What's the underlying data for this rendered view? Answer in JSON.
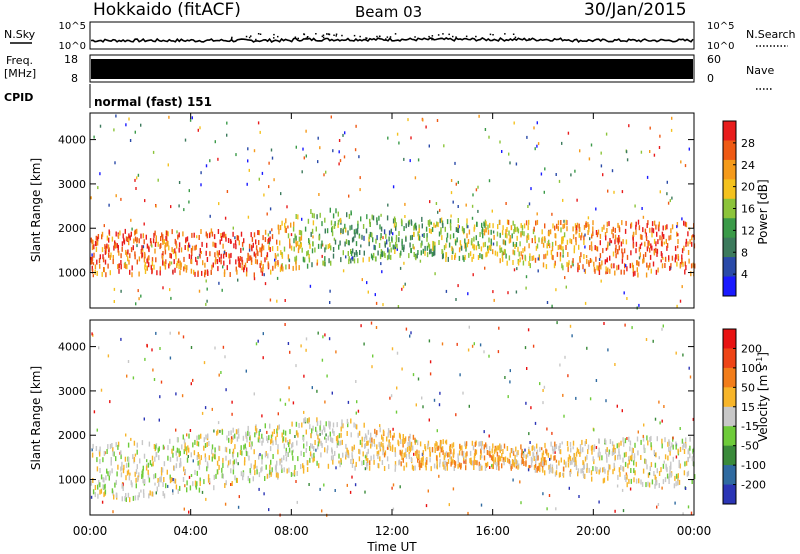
{
  "header": {
    "title": "Hokkaido (fitACF)",
    "beam": "Beam 03",
    "date": "30/Jan/2015"
  },
  "noise_panel": {
    "left_label": "N.Sky",
    "right_label": "N.Search",
    "left_ticks": [
      "10^5",
      "10^0"
    ],
    "right_ticks": [
      "10^5",
      "10^0"
    ]
  },
  "freq_panel": {
    "left_label_top": "Freq.",
    "left_label_unit": "[MHz]",
    "left_ticks": [
      "18",
      "8"
    ],
    "right_label": "Nave",
    "right_ticks": [
      "60",
      "0"
    ]
  },
  "cpid_panel": {
    "label": "CPID",
    "mode_text": "normal (fast) 151"
  },
  "colors": {
    "power_scale": [
      "#1a1aff",
      "#2a4aa8",
      "#3c7a5c",
      "#3a9a48",
      "#8cc43a",
      "#f4c21e",
      "#f59a1a",
      "#ef5a14",
      "#e81c1c"
    ],
    "velocity_scale": [
      "#2b35b5",
      "#2f6aa0",
      "#3a8a3a",
      "#6ecb3a",
      "#c8c8c8",
      "#f7b52a",
      "#f27d1a",
      "#ee4416",
      "#e81212"
    ]
  },
  "chart_data": [
    {
      "type": "heatmap",
      "title": "",
      "xlabel": "",
      "ylabel": "Slant Range [km]",
      "colorbar_label": "Power [dB]",
      "colorbar_ticks": [
        "28",
        "24",
        "20",
        "16",
        "12",
        "8",
        "4"
      ],
      "yticks": [
        "4000",
        "3000",
        "2000",
        "1000"
      ],
      "ytick_values": [
        4000,
        3000,
        2000,
        1000
      ],
      "xlim": [
        0,
        24
      ],
      "ylim": [
        200,
        4600
      ],
      "color_range": [
        0,
        32
      ],
      "description_points": [
        {
          "t": 0.5,
          "range": [
            1000,
            2000
          ],
          "power": 26
        },
        {
          "t": 3.0,
          "range": [
            1000,
            2000
          ],
          "power": 26
        },
        {
          "t": 6.5,
          "range": [
            1000,
            2000
          ],
          "power": 29
        },
        {
          "t": 9.0,
          "range": [
            1200,
            2500
          ],
          "power": 14
        },
        {
          "t": 12.0,
          "range": [
            1400,
            2300
          ],
          "power": 12
        },
        {
          "t": 16.0,
          "range": [
            1300,
            2200
          ],
          "power": 18
        },
        {
          "t": 21.0,
          "range": [
            1000,
            2200
          ],
          "power": 27
        }
      ]
    },
    {
      "type": "heatmap",
      "title": "",
      "xlabel": "Time UT",
      "ylabel": "Slant Range [km]",
      "colorbar_label": "Velocity [m s-1]",
      "colorbar_ticks": [
        "200",
        "100",
        "50",
        "15",
        "-15",
        "-50",
        "-100",
        "-200"
      ],
      "yticks": [
        "4000",
        "3000",
        "2000",
        "1000"
      ],
      "ytick_values": [
        4000,
        3000,
        2000,
        1000
      ],
      "xticks": [
        "00:00",
        "04:00",
        "08:00",
        "12:00",
        "16:00",
        "20:00",
        "00:00"
      ],
      "xtick_values": [
        0,
        4,
        8,
        12,
        16,
        20,
        24
      ],
      "xlim": [
        0,
        24
      ],
      "ylim": [
        200,
        4600
      ],
      "color_range": [
        -250,
        250
      ],
      "description_points": [
        {
          "t": 2.0,
          "range": [
            600,
            1900
          ],
          "velocity": 0
        },
        {
          "t": 9.5,
          "range": [
            1300,
            2500
          ],
          "velocity": 0
        },
        {
          "t": 13.0,
          "range": [
            1300,
            2000
          ],
          "velocity": 60
        },
        {
          "t": 17.0,
          "range": [
            1300,
            1800
          ],
          "velocity": 60
        },
        {
          "t": 21.5,
          "range": [
            900,
            2000
          ],
          "velocity": 0
        }
      ]
    }
  ]
}
